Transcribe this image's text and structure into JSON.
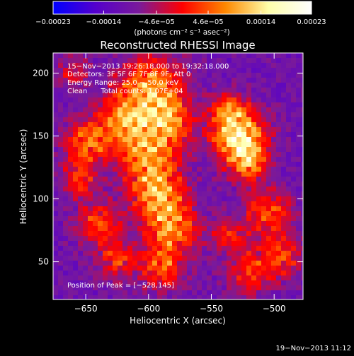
{
  "chart_data": {
    "type": "heatmap",
    "title": "Reconstructed RHESSI Image",
    "xlabel": "Heliocentric X (arcsec)",
    "ylabel": "Heliocentric Y (arcsec)",
    "xlim": [
      -676,
      -477
    ],
    "ylim": [
      20,
      216
    ],
    "x_ticks": [
      -650,
      -600,
      -550,
      -500
    ],
    "x_tick_labels": [
      "−650",
      "−600",
      "−550",
      "−500"
    ],
    "y_ticks": [
      50,
      100,
      150,
      200
    ],
    "y_tick_labels": [
      "50",
      "100",
      "150",
      "200"
    ],
    "colorbar": {
      "min": -0.00023,
      "max": 0.00023,
      "ticks": [
        -0.00023,
        -0.00014,
        -4.6e-05,
        4.6e-05,
        0.00014,
        0.00023
      ],
      "tick_labels": [
        "−0.00023",
        "−0.00014",
        "−4.6e−05",
        "4.6e−05",
        "0.00014",
        "0.00023"
      ],
      "units": "(photons cm⁻² s⁻¹ asec⁻²)",
      "colors": [
        "#0000ff",
        "#5500cc",
        "#7a1a9a",
        "#ff0000",
        "#ff8800",
        "#ffffaa",
        "#ffffff"
      ]
    },
    "annotations": [
      "15−Nov−2013 19:26:18.000 to 19:32:18.000",
      "Detectors: 3F 5F 6F 7F 8F 9F, Att 0",
      "Energy Range: 25.0 − 50.0 keV",
      "Clean      Total counts: 1.07E+04"
    ],
    "peak_label": "Position of Peak = [−528,145]",
    "peak": [
      -528,
      145
    ],
    "sources": [
      {
        "x": -528,
        "y": 150,
        "amp": 1.0,
        "sigma": 15
      },
      {
        "x": -520,
        "y": 128,
        "amp": 0.55,
        "sigma": 10
      },
      {
        "x": -537,
        "y": 172,
        "amp": 0.45,
        "sigma": 9
      },
      {
        "x": -598,
        "y": 188,
        "amp": 0.7,
        "sigma": 18
      },
      {
        "x": -620,
        "y": 160,
        "amp": 0.65,
        "sigma": 15
      },
      {
        "x": -585,
        "y": 160,
        "amp": 0.6,
        "sigma": 14
      },
      {
        "x": -600,
        "y": 130,
        "amp": 0.65,
        "sigma": 16
      },
      {
        "x": -592,
        "y": 100,
        "amp": 0.65,
        "sigma": 15
      },
      {
        "x": -580,
        "y": 75,
        "amp": 0.6,
        "sigma": 14
      },
      {
        "x": -590,
        "y": 45,
        "amp": 0.55,
        "sigma": 12
      },
      {
        "x": -650,
        "y": 145,
        "amp": 0.6,
        "sigma": 12
      },
      {
        "x": -655,
        "y": 115,
        "amp": 0.45,
        "sigma": 10
      },
      {
        "x": -640,
        "y": 80,
        "amp": 0.5,
        "sigma": 12
      },
      {
        "x": -625,
        "y": 52,
        "amp": 0.45,
        "sigma": 11
      },
      {
        "x": -505,
        "y": 90,
        "amp": 0.55,
        "sigma": 13
      },
      {
        "x": -495,
        "y": 55,
        "amp": 0.5,
        "sigma": 12
      },
      {
        "x": -520,
        "y": 40,
        "amp": 0.45,
        "sigma": 12
      },
      {
        "x": -535,
        "y": 70,
        "amp": 0.4,
        "sigma": 10
      },
      {
        "x": -660,
        "y": 200,
        "amp": 0.3,
        "sigma": 10
      }
    ]
  },
  "footer": {
    "timestamp": "19−Nov−2013 11:12"
  }
}
